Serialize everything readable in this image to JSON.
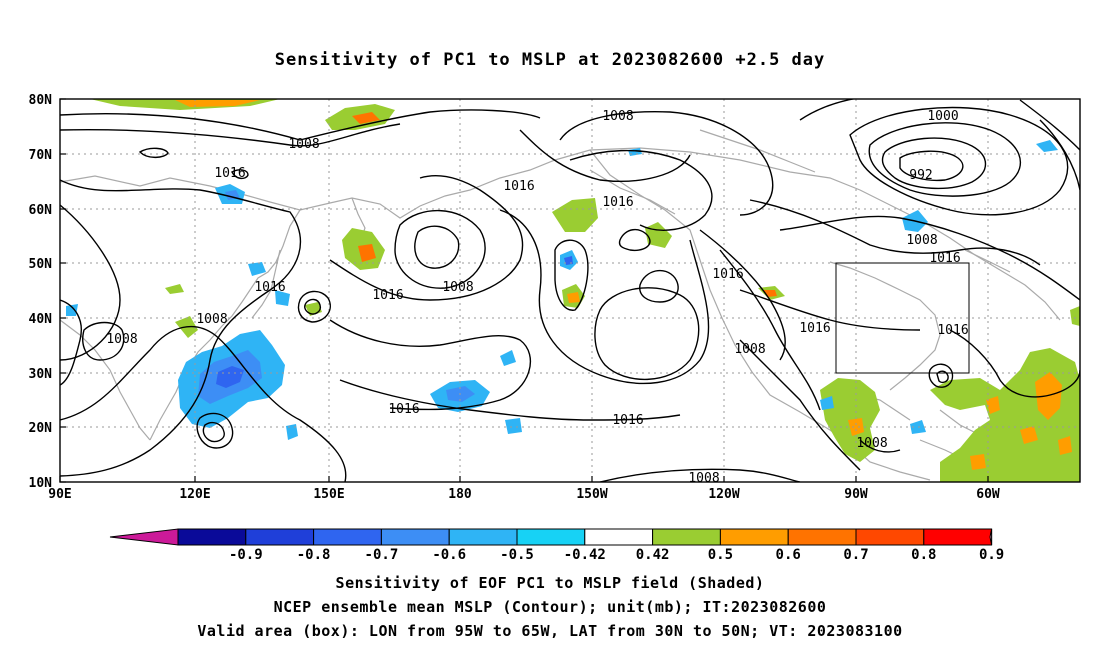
{
  "title": "Sensitivity of PC1 to MSLP at 2023082600 +2.5 day",
  "map": {
    "lat_ticks": [
      "80N",
      "70N",
      "60N",
      "50N",
      "40N",
      "30N",
      "20N",
      "10N"
    ],
    "lon_ticks": [
      "90E",
      "120E",
      "150E",
      "180",
      "150W",
      "120W",
      "90W",
      "60W"
    ],
    "contour_labels": [
      "1008",
      "1008",
      "1016",
      "1016",
      "1008",
      "1016",
      "1016",
      "1016",
      "1008",
      "1016",
      "1008",
      "1008",
      "1016",
      "1016",
      "1016",
      "1008",
      "1016",
      "1016",
      "1000",
      "992",
      "1008",
      "1016",
      "1016",
      "1016",
      "1008",
      "1008"
    ],
    "valid_box": {
      "lon": [
        "95W",
        "65W"
      ],
      "lat": [
        "30N",
        "50N"
      ]
    }
  },
  "colorbar": {
    "labels": [
      "-0.9",
      "-0.8",
      "-0.7",
      "-0.6",
      "-0.5",
      "-0.42",
      "0.42",
      "0.5",
      "0.6",
      "0.7",
      "0.8",
      "0.9"
    ],
    "colors": [
      "#0a0a99",
      "#1f3fd9",
      "#2f65f0",
      "#3d8ef5",
      "#2fb4f5",
      "#17d2f5",
      "#ffffff",
      "#9acd32",
      "#ff9d00",
      "#ff7300",
      "#ff4800",
      "#ff0000"
    ],
    "low_extend_color": "#cc1a99",
    "high_extend_color": "#f7a8d2"
  },
  "captions": [
    "Sensitivity of EOF PC1 to MSLP field (Shaded)",
    "NCEP ensemble mean MSLP (Contour); unit(mb); IT:2023082600",
    "Valid area (box): LON from 95W to 65W, LAT from 30N to 50N; VT: 2023083100"
  ]
}
